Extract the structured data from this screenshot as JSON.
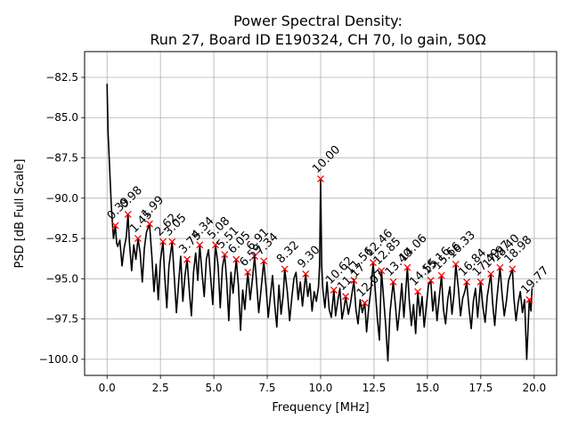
{
  "chart_data": {
    "type": "line",
    "title_line1": "Power Spectral Density:",
    "title_line2": "Run 27, Board ID E190324, CH 70, lo gain, 50Ω",
    "xlabel": "Frequency [MHz]",
    "ylabel": "PSD [dB Full Scale]",
    "xlim": [
      -1.05,
      21.05
    ],
    "ylim": [
      -101.0,
      -80.9
    ],
    "grid": true,
    "xticks": [
      0.0,
      2.5,
      5.0,
      7.5,
      10.0,
      12.5,
      15.0,
      17.5,
      20.0
    ],
    "xtick_labels": [
      "0.0",
      "2.5",
      "5.0",
      "7.5",
      "10.0",
      "12.5",
      "15.0",
      "17.5",
      "20.0"
    ],
    "yticks": [
      -82.5,
      -85.0,
      -87.5,
      -90.0,
      -92.5,
      -95.0,
      -97.5,
      -100.0
    ],
    "ytick_labels": [
      "−82.5",
      "−85.0",
      "−87.5",
      "−90.0",
      "−92.5",
      "−95.0",
      "−97.5",
      "−100.0"
    ],
    "line_color": "#000000",
    "marker_color": "#ff0000",
    "trace": {
      "x": [
        0.0,
        0.05,
        0.1,
        0.2,
        0.3,
        0.39,
        0.45,
        0.5,
        0.6,
        0.7,
        0.8,
        0.9,
        0.98,
        1.05,
        1.15,
        1.25,
        1.35,
        1.45,
        1.55,
        1.65,
        1.75,
        1.85,
        1.99,
        2.1,
        2.2,
        2.3,
        2.4,
        2.5,
        2.62,
        2.7,
        2.8,
        2.9,
        3.05,
        3.15,
        3.25,
        3.35,
        3.45,
        3.55,
        3.65,
        3.75,
        3.85,
        3.95,
        4.05,
        4.15,
        4.25,
        4.34,
        4.45,
        4.55,
        4.65,
        4.75,
        4.85,
        4.95,
        5.08,
        5.2,
        5.3,
        5.4,
        5.51,
        5.6,
        5.7,
        5.8,
        5.9,
        6.05,
        6.15,
        6.25,
        6.35,
        6.45,
        6.59,
        6.7,
        6.8,
        6.91,
        7.0,
        7.1,
        7.2,
        7.34,
        7.45,
        7.55,
        7.65,
        7.75,
        7.85,
        7.95,
        8.05,
        8.15,
        8.25,
        8.32,
        8.45,
        8.55,
        8.65,
        8.75,
        8.85,
        8.95,
        9.05,
        9.15,
        9.3,
        9.4,
        9.5,
        9.6,
        9.7,
        9.8,
        9.9,
        9.95,
        10.0,
        10.05,
        10.1,
        10.2,
        10.3,
        10.4,
        10.5,
        10.62,
        10.7,
        10.8,
        10.9,
        11.0,
        11.1,
        11.17,
        11.3,
        11.4,
        11.56,
        11.65,
        11.75,
        11.85,
        11.95,
        12.07,
        12.15,
        12.25,
        12.35,
        12.46,
        12.55,
        12.65,
        12.75,
        12.85,
        12.95,
        13.05,
        13.15,
        13.25,
        13.4,
        13.5,
        13.6,
        13.7,
        13.8,
        13.9,
        14.06,
        14.15,
        14.25,
        14.35,
        14.45,
        14.55,
        14.65,
        14.75,
        14.85,
        14.95,
        15.05,
        15.16,
        15.25,
        15.35,
        15.45,
        15.55,
        15.66,
        15.75,
        15.85,
        15.95,
        16.05,
        16.15,
        16.25,
        16.33,
        16.45,
        16.55,
        16.65,
        16.75,
        16.84,
        16.95,
        17.05,
        17.15,
        17.25,
        17.35,
        17.49,
        17.6,
        17.7,
        17.8,
        17.97,
        18.05,
        18.15,
        18.25,
        18.4,
        18.5,
        18.6,
        18.7,
        18.8,
        18.98,
        19.05,
        19.15,
        19.25,
        19.35,
        19.45,
        19.55,
        19.65,
        19.77,
        19.85,
        19.9
      ],
      "y": [
        -82.9,
        -86.0,
        -87.5,
        -90.5,
        -92.5,
        -91.7,
        -92.8,
        -93.0,
        -92.6,
        -94.2,
        -93.1,
        -92.4,
        -91.0,
        -92.8,
        -94.5,
        -92.9,
        -93.8,
        -92.5,
        -93.4,
        -95.2,
        -93.1,
        -92.1,
        -91.6,
        -93.6,
        -95.8,
        -94.1,
        -96.3,
        -93.9,
        -92.7,
        -94.8,
        -96.8,
        -94.2,
        -92.7,
        -94.9,
        -97.1,
        -95.3,
        -93.6,
        -96.4,
        -94.8,
        -93.8,
        -95.7,
        -97.3,
        -94.6,
        -93.4,
        -95.1,
        -92.9,
        -94.7,
        -96.1,
        -93.8,
        -93.2,
        -94.9,
        -96.6,
        -92.9,
        -94.2,
        -96.8,
        -94.3,
        -93.5,
        -95.1,
        -97.6,
        -94.6,
        -95.9,
        -93.8,
        -95.4,
        -98.2,
        -95.7,
        -96.9,
        -94.6,
        -96.3,
        -95.1,
        -93.6,
        -95.2,
        -97.1,
        -95.8,
        -93.9,
        -95.6,
        -97.4,
        -96.1,
        -94.8,
        -96.6,
        -98.0,
        -95.4,
        -97.2,
        -96.0,
        -94.4,
        -95.9,
        -97.6,
        -96.2,
        -95.0,
        -94.6,
        -96.3,
        -95.2,
        -96.7,
        -94.7,
        -96.1,
        -95.3,
        -97.0,
        -95.8,
        -96.4,
        -95.5,
        -94.2,
        -88.8,
        -94.1,
        -95.6,
        -96.8,
        -95.2,
        -96.9,
        -97.4,
        -95.7,
        -97.3,
        -96.4,
        -95.6,
        -97.5,
        -96.8,
        -96.1,
        -97.2,
        -96.5,
        -95.1,
        -96.9,
        -97.8,
        -96.3,
        -97.1,
        -96.5,
        -98.3,
        -96.8,
        -95.7,
        -94.0,
        -95.6,
        -97.4,
        -98.8,
        -94.5,
        -96.2,
        -97.9,
        -100.1,
        -97.1,
        -95.2,
        -96.6,
        -98.2,
        -96.9,
        -95.3,
        -97.4,
        -94.3,
        -96.3,
        -97.9,
        -96.6,
        -98.4,
        -95.8,
        -97.3,
        -96.1,
        -98.0,
        -96.7,
        -95.4,
        -95.1,
        -97.0,
        -95.8,
        -97.6,
        -96.2,
        -94.8,
        -96.9,
        -97.8,
        -96.3,
        -95.5,
        -97.2,
        -95.9,
        -94.1,
        -95.6,
        -97.3,
        -96.2,
        -95.8,
        -95.2,
        -96.9,
        -98.1,
        -96.4,
        -95.6,
        -97.4,
        -95.2,
        -96.8,
        -97.7,
        -96.1,
        -94.7,
        -96.5,
        -97.9,
        -96.2,
        -94.3,
        -96.0,
        -97.3,
        -96.4,
        -95.1,
        -94.4,
        -96.2,
        -97.6,
        -96.5,
        -95.8,
        -97.1,
        -96.3,
        -100.0,
        -96.3,
        -97.0,
        -95.6
      ]
    },
    "peaks": [
      {
        "x": 0.39,
        "y": -91.7,
        "label": "0.39"
      },
      {
        "x": 0.98,
        "y": -91.0,
        "label": "0.98"
      },
      {
        "x": 1.45,
        "y": -92.5,
        "label": "1.45"
      },
      {
        "x": 1.99,
        "y": -91.6,
        "label": "1.99"
      },
      {
        "x": 2.62,
        "y": -92.7,
        "label": "2.62"
      },
      {
        "x": 3.05,
        "y": -92.7,
        "label": "3.05"
      },
      {
        "x": 3.75,
        "y": -93.8,
        "label": "3.75"
      },
      {
        "x": 4.34,
        "y": -92.9,
        "label": "4.34"
      },
      {
        "x": 5.08,
        "y": -92.9,
        "label": "5.08"
      },
      {
        "x": 5.51,
        "y": -93.5,
        "label": "5.51"
      },
      {
        "x": 6.05,
        "y": -93.8,
        "label": "6.05"
      },
      {
        "x": 6.59,
        "y": -94.6,
        "label": "6.59"
      },
      {
        "x": 6.91,
        "y": -93.6,
        "label": "6.91"
      },
      {
        "x": 7.34,
        "y": -93.9,
        "label": "7.34"
      },
      {
        "x": 8.32,
        "y": -94.4,
        "label": "8.32"
      },
      {
        "x": 9.3,
        "y": -94.7,
        "label": "9.30"
      },
      {
        "x": 10.0,
        "y": -88.8,
        "label": "10.00"
      },
      {
        "x": 10.62,
        "y": -95.7,
        "label": "10.62"
      },
      {
        "x": 11.17,
        "y": -96.1,
        "label": "11.17"
      },
      {
        "x": 11.56,
        "y": -95.1,
        "label": "11.56"
      },
      {
        "x": 12.07,
        "y": -96.5,
        "label": "12.07"
      },
      {
        "x": 12.46,
        "y": -94.0,
        "label": "12.46"
      },
      {
        "x": 12.85,
        "y": -94.5,
        "label": "12.85"
      },
      {
        "x": 13.4,
        "y": -95.2,
        "label": "13.40"
      },
      {
        "x": 14.06,
        "y": -94.3,
        "label": "14.06"
      },
      {
        "x": 14.55,
        "y": -95.8,
        "label": "14.55"
      },
      {
        "x": 15.16,
        "y": -95.1,
        "label": "15.16"
      },
      {
        "x": 15.66,
        "y": -94.8,
        "label": "15.66"
      },
      {
        "x": 16.33,
        "y": -94.1,
        "label": "16.33"
      },
      {
        "x": 16.84,
        "y": -95.2,
        "label": "16.84"
      },
      {
        "x": 17.49,
        "y": -95.2,
        "label": "17.49"
      },
      {
        "x": 17.97,
        "y": -94.7,
        "label": "17.97"
      },
      {
        "x": 18.4,
        "y": -94.3,
        "label": "18.40"
      },
      {
        "x": 18.98,
        "y": -94.4,
        "label": "18.98"
      },
      {
        "x": 19.77,
        "y": -96.3,
        "label": "19.77"
      }
    ]
  }
}
